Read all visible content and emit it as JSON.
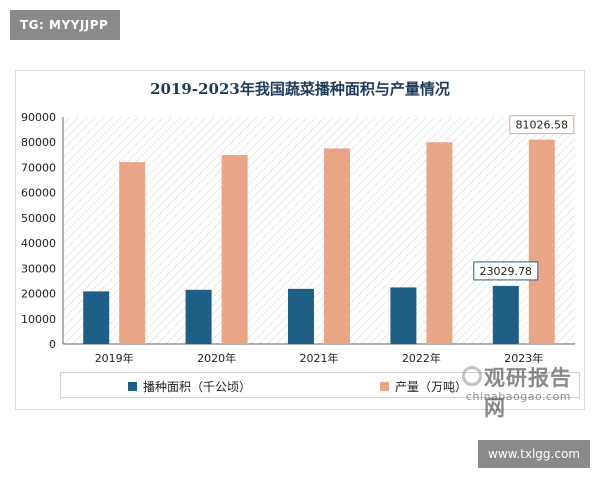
{
  "badges": {
    "tg": "TG: MYYJJPP",
    "website": "www.txlgg.com"
  },
  "logo": {
    "main": "观研报告网",
    "sub": "chinabaogao.com"
  },
  "colors": {
    "area": "#1f5f86",
    "output": "#e8a686",
    "label_border": "#1f5f86",
    "axis": "#555555"
  },
  "chart_data": {
    "type": "bar",
    "title": "2019-2023年我国蔬菜播种面积与产量情况",
    "categories": [
      "2019年",
      "2020年",
      "2021年",
      "2022年",
      "2023年"
    ],
    "series": [
      {
        "name": "播种面积（千公顷）",
        "values": [
          20863,
          21485,
          21868,
          22434,
          23029.78
        ]
      },
      {
        "name": "产量（万吨）",
        "values": [
          72103,
          74913,
          77549,
          79997,
          81026.58
        ]
      }
    ],
    "yticks": [
      "0",
      "10000",
      "20000",
      "30000",
      "40000",
      "50000",
      "60000",
      "70000",
      "80000",
      "90000"
    ],
    "ylim": [
      0,
      90000
    ],
    "annotations": [
      {
        "text": "23029.78",
        "series": 0,
        "index": 4
      },
      {
        "text": "81026.58",
        "series": 1,
        "index": 4
      }
    ],
    "legend_position": "bottom",
    "grid": false
  }
}
